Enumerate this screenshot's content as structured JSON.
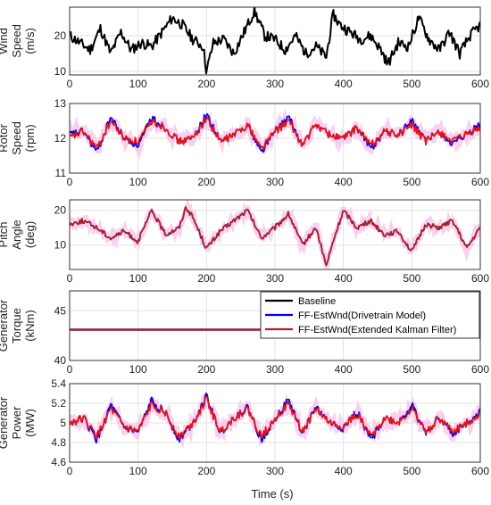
{
  "figure": {
    "xlabel": "Time (s)",
    "legend": {
      "placement": "top-right of panel 4",
      "entries": [
        "Baseline",
        "FF-EstWnd(Drivetrain Model)",
        "FF-EstWnd(Extended Kalman Filter)"
      ]
    }
  },
  "chart_data": [
    {
      "type": "line",
      "ylabel": [
        "Wind",
        "Speed",
        "(m/s)"
      ],
      "xlim": [
        0,
        600
      ],
      "ylim": [
        9,
        28
      ],
      "yticks": [
        "10",
        "20"
      ],
      "xticks": [
        "0",
        "100",
        "200",
        "300",
        "400",
        "500",
        "600"
      ],
      "grid": true,
      "series": [
        {
          "color": "#000000",
          "x": [
            0,
            15,
            30,
            45,
            60,
            75,
            90,
            105,
            120,
            135,
            150,
            165,
            180,
            195,
            200,
            210,
            225,
            240,
            255,
            270,
            285,
            300,
            315,
            330,
            345,
            360,
            375,
            385,
            395,
            410,
            425,
            440,
            455,
            465,
            480,
            495,
            510,
            525,
            540,
            555,
            570,
            585,
            600
          ],
          "y": [
            20,
            18,
            16,
            22,
            15,
            21,
            16,
            18,
            17,
            21,
            25,
            23,
            19,
            17,
            10,
            18,
            19,
            15,
            21,
            27,
            20,
            19,
            16,
            20,
            15,
            17,
            14,
            26,
            23,
            21,
            19,
            20,
            16,
            12,
            18,
            17,
            25,
            19,
            16,
            21,
            15,
            20,
            23
          ]
        }
      ]
    },
    {
      "type": "line",
      "ylabel": [
        "Rotor",
        "Speed",
        "(rpm)"
      ],
      "xlim": [
        0,
        600
      ],
      "ylim": [
        11,
        13
      ],
      "yticks": [
        "11",
        "12",
        "13"
      ],
      "xticks": [
        "0",
        "100",
        "200",
        "300",
        "400",
        "500",
        "600"
      ],
      "grid": true,
      "series": [
        {
          "name": "Baseline",
          "color": "#000000",
          "x": [
            0,
            20,
            40,
            60,
            80,
            100,
            120,
            140,
            160,
            180,
            200,
            220,
            240,
            260,
            280,
            300,
            320,
            340,
            360,
            380,
            400,
            420,
            440,
            460,
            480,
            500,
            520,
            540,
            560,
            580,
            600
          ],
          "y": [
            12.1,
            12.2,
            11.7,
            12.5,
            12.0,
            11.8,
            12.5,
            12.3,
            11.9,
            12.0,
            12.6,
            11.9,
            12.1,
            12.4,
            11.7,
            12.2,
            12.5,
            11.8,
            12.4,
            12.1,
            12.0,
            12.3,
            11.8,
            12.2,
            12.1,
            12.4,
            11.9,
            12.2,
            11.9,
            12.1,
            12.3
          ]
        },
        {
          "name": "FF-EstWnd(Drivetrain Model)",
          "color": "#0000ee",
          "x": [
            0,
            20,
            40,
            60,
            80,
            100,
            120,
            140,
            160,
            180,
            200,
            220,
            240,
            260,
            280,
            300,
            320,
            340,
            360,
            380,
            400,
            420,
            440,
            460,
            480,
            500,
            520,
            540,
            560,
            580,
            600
          ],
          "y": [
            12.1,
            12.2,
            11.6,
            12.6,
            12.0,
            11.8,
            12.6,
            12.3,
            11.9,
            12.0,
            12.7,
            11.9,
            12.1,
            12.4,
            11.6,
            12.2,
            12.6,
            11.8,
            12.4,
            12.1,
            12.0,
            12.3,
            11.7,
            12.2,
            12.1,
            12.5,
            11.9,
            12.2,
            11.8,
            12.1,
            12.4
          ]
        },
        {
          "name": "FF-EstWnd(Extended Kalman Filter)",
          "color": "#ee1111",
          "x": [
            0,
            20,
            40,
            60,
            80,
            100,
            120,
            140,
            160,
            180,
            200,
            220,
            240,
            260,
            280,
            300,
            320,
            340,
            360,
            380,
            400,
            420,
            440,
            460,
            480,
            500,
            520,
            540,
            560,
            580,
            600
          ],
          "y": [
            12.0,
            12.2,
            11.7,
            12.5,
            12.0,
            11.9,
            12.5,
            12.3,
            11.9,
            12.0,
            12.6,
            11.9,
            12.1,
            12.4,
            11.7,
            12.2,
            12.5,
            11.8,
            12.4,
            12.1,
            12.0,
            12.3,
            11.8,
            12.2,
            12.1,
            12.4,
            11.9,
            12.2,
            11.9,
            12.1,
            12.3
          ]
        }
      ]
    },
    {
      "type": "line",
      "ylabel": [
        "Pitch",
        "Angle",
        "(deg)"
      ],
      "xlim": [
        0,
        600
      ],
      "ylim": [
        3,
        23
      ],
      "yticks": [
        "10",
        "20"
      ],
      "xticks": [
        "0",
        "100",
        "200",
        "300",
        "400",
        "500",
        "600"
      ],
      "grid": true,
      "series": [
        {
          "name": "Baseline",
          "color": "#000000",
          "x": [
            0,
            20,
            40,
            60,
            80,
            100,
            120,
            140,
            160,
            170,
            180,
            200,
            220,
            240,
            260,
            280,
            300,
            320,
            340,
            360,
            375,
            385,
            400,
            420,
            440,
            460,
            480,
            500,
            520,
            540,
            560,
            580,
            600
          ],
          "y": [
            16,
            17,
            15,
            12,
            14,
            11,
            20,
            13,
            15,
            21,
            18,
            9,
            14,
            17,
            20,
            12,
            15,
            19,
            10,
            15,
            4,
            11,
            20,
            15,
            17,
            13,
            14,
            8,
            16,
            15,
            17,
            9,
            15
          ]
        },
        {
          "name": "FF-EstWnd(Drivetrain Model)",
          "color": "#0000ee",
          "x": [
            0,
            20,
            40,
            60,
            80,
            100,
            120,
            140,
            160,
            170,
            180,
            200,
            220,
            240,
            260,
            280,
            300,
            320,
            340,
            360,
            375,
            385,
            400,
            420,
            440,
            460,
            480,
            500,
            520,
            540,
            560,
            580,
            600
          ],
          "y": [
            16,
            17,
            15,
            12,
            14,
            11,
            20,
            13,
            15,
            21,
            18,
            9,
            14,
            17,
            20,
            12,
            15,
            19,
            10,
            15,
            4,
            11,
            20,
            15,
            17,
            13,
            14,
            8,
            16,
            15,
            17,
            9,
            15
          ]
        },
        {
          "name": "FF-EstWnd(Extended Kalman Filter)",
          "color": "#b02020",
          "x": [
            0,
            20,
            40,
            60,
            80,
            100,
            120,
            140,
            160,
            170,
            180,
            200,
            220,
            240,
            260,
            280,
            300,
            320,
            340,
            360,
            375,
            385,
            400,
            420,
            440,
            460,
            480,
            500,
            520,
            540,
            560,
            580,
            600
          ],
          "y": [
            16,
            17,
            15,
            12,
            14,
            11,
            20,
            13,
            15,
            21,
            18,
            9,
            14,
            17,
            20,
            12,
            15,
            19,
            10,
            15,
            4,
            11,
            20,
            15,
            17,
            13,
            14,
            8,
            16,
            15,
            17,
            9,
            15
          ]
        }
      ]
    },
    {
      "type": "line",
      "ylabel": [
        "Generator",
        "Torque",
        "(kNm)"
      ],
      "xlim": [
        0,
        600
      ],
      "ylim": [
        40,
        47
      ],
      "yticks": [
        "40",
        "45"
      ],
      "xticks": [
        "0",
        "100",
        "200",
        "300",
        "400",
        "500",
        "600"
      ],
      "grid": true,
      "series": [
        {
          "name": "Baseline",
          "color": "#000000",
          "x": [
            0,
            600
          ],
          "y": [
            43.1,
            43.1
          ]
        },
        {
          "name": "FF-EstWnd(Drivetrain Model)",
          "color": "#0000ee",
          "x": [
            0,
            600
          ],
          "y": [
            43.1,
            43.1
          ]
        },
        {
          "name": "FF-EstWnd(Extended Kalman Filter)",
          "color": "#b02020",
          "x": [
            0,
            600
          ],
          "y": [
            43.1,
            43.1
          ]
        }
      ]
    },
    {
      "type": "line",
      "ylabel": [
        "Generator",
        "Power",
        "(MW)"
      ],
      "xlim": [
        0,
        600
      ],
      "ylim": [
        4.6,
        5.4
      ],
      "yticks": [
        "4.6",
        "4.8",
        "5",
        "5.2",
        "5.4"
      ],
      "xticks": [
        "0",
        "100",
        "200",
        "300",
        "400",
        "500",
        "600"
      ],
      "grid": true,
      "series": [
        {
          "name": "Baseline",
          "color": "#000000",
          "x": [
            0,
            20,
            40,
            60,
            80,
            100,
            120,
            140,
            160,
            180,
            200,
            220,
            240,
            260,
            280,
            300,
            320,
            340,
            360,
            380,
            400,
            420,
            440,
            460,
            480,
            500,
            520,
            540,
            560,
            580,
            600
          ],
          "y": [
            5.0,
            5.05,
            4.85,
            5.15,
            4.95,
            4.9,
            5.2,
            5.1,
            4.85,
            5.0,
            5.25,
            4.9,
            5.05,
            5.15,
            4.85,
            5.05,
            5.2,
            4.9,
            5.15,
            5.0,
            4.95,
            5.1,
            4.85,
            5.05,
            5.0,
            5.15,
            4.9,
            5.05,
            4.9,
            5.0,
            5.1
          ]
        },
        {
          "name": "FF-EstWnd(Drivetrain Model)",
          "color": "#0000ee",
          "x": [
            0,
            20,
            40,
            60,
            80,
            100,
            120,
            140,
            160,
            180,
            200,
            220,
            240,
            260,
            280,
            300,
            320,
            340,
            360,
            380,
            400,
            420,
            440,
            460,
            480,
            500,
            520,
            540,
            560,
            580,
            600
          ],
          "y": [
            5.0,
            5.05,
            4.82,
            5.18,
            4.95,
            4.9,
            5.23,
            5.1,
            4.83,
            5.0,
            5.27,
            4.9,
            5.05,
            5.16,
            4.82,
            5.05,
            5.23,
            4.9,
            5.16,
            5.0,
            4.94,
            5.12,
            4.82,
            5.05,
            5.0,
            5.18,
            4.9,
            5.06,
            4.88,
            5.0,
            5.12
          ]
        },
        {
          "name": "FF-EstWnd(Extended Kalman Filter)",
          "color": "#ee1111",
          "x": [
            0,
            20,
            40,
            60,
            80,
            100,
            120,
            140,
            160,
            180,
            200,
            220,
            240,
            260,
            280,
            300,
            320,
            340,
            360,
            380,
            400,
            420,
            440,
            460,
            480,
            500,
            520,
            540,
            560,
            580,
            600
          ],
          "y": [
            5.0,
            5.05,
            4.86,
            5.14,
            4.96,
            4.91,
            5.19,
            5.1,
            4.86,
            5.0,
            5.24,
            4.91,
            5.05,
            5.14,
            4.86,
            5.05,
            5.19,
            4.91,
            5.14,
            5.0,
            4.96,
            5.09,
            4.86,
            5.05,
            5.0,
            5.14,
            4.91,
            5.05,
            4.91,
            5.0,
            5.09
          ]
        }
      ]
    }
  ]
}
